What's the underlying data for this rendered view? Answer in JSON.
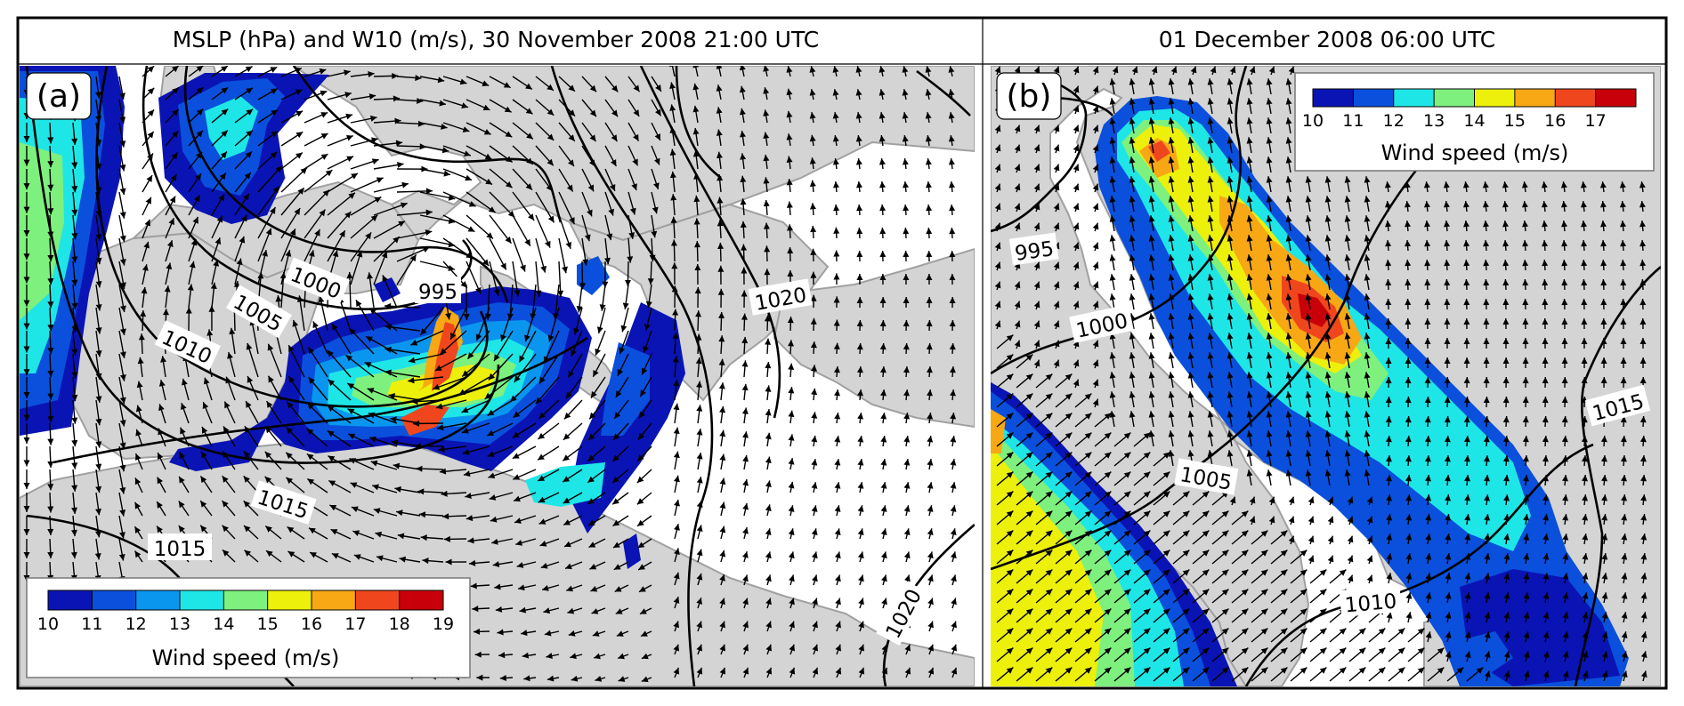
{
  "figure": {
    "title_a": "MSLP (hPa) and W10 (m/s), 30 November 2008 21:00 UTC",
    "title_b": "01 December 2008 06:00 UTC"
  },
  "panels": [
    {
      "id": "a",
      "panel_label": "(a)",
      "isobar_labels": [
        "995",
        "1000",
        "1005",
        "1010",
        "1015",
        "1015",
        "1020",
        "1020"
      ],
      "colorbar": {
        "title": "Wind speed (m/s)",
        "ticks": [
          "10",
          "11",
          "12",
          "13",
          "14",
          "15",
          "16",
          "17",
          "18",
          "19"
        ],
        "colors": [
          "#0a14b4",
          "#0a50dc",
          "#0a96ee",
          "#1ee6e6",
          "#7ef07e",
          "#ecf00a",
          "#f8a814",
          "#f0461e",
          "#c8000a"
        ]
      }
    },
    {
      "id": "b",
      "panel_label": "(b)",
      "isobar_labels": [
        "995",
        "1000",
        "1005",
        "1010",
        "1015"
      ],
      "colorbar": {
        "title": "Wind speed (m/s)",
        "ticks": [
          "10",
          "11",
          "12",
          "13",
          "14",
          "15",
          "16",
          "17"
        ],
        "colors": [
          "#0a14b4",
          "#0a50dc",
          "#1ee6e6",
          "#7ef07e",
          "#ecf00a",
          "#f8a814",
          "#f0461e",
          "#c8000a"
        ]
      }
    }
  ],
  "colors": {
    "land": "#d4d4d4",
    "sea": "#ffffff",
    "coastline": "#a0a0a0",
    "isobar": "#000000"
  }
}
